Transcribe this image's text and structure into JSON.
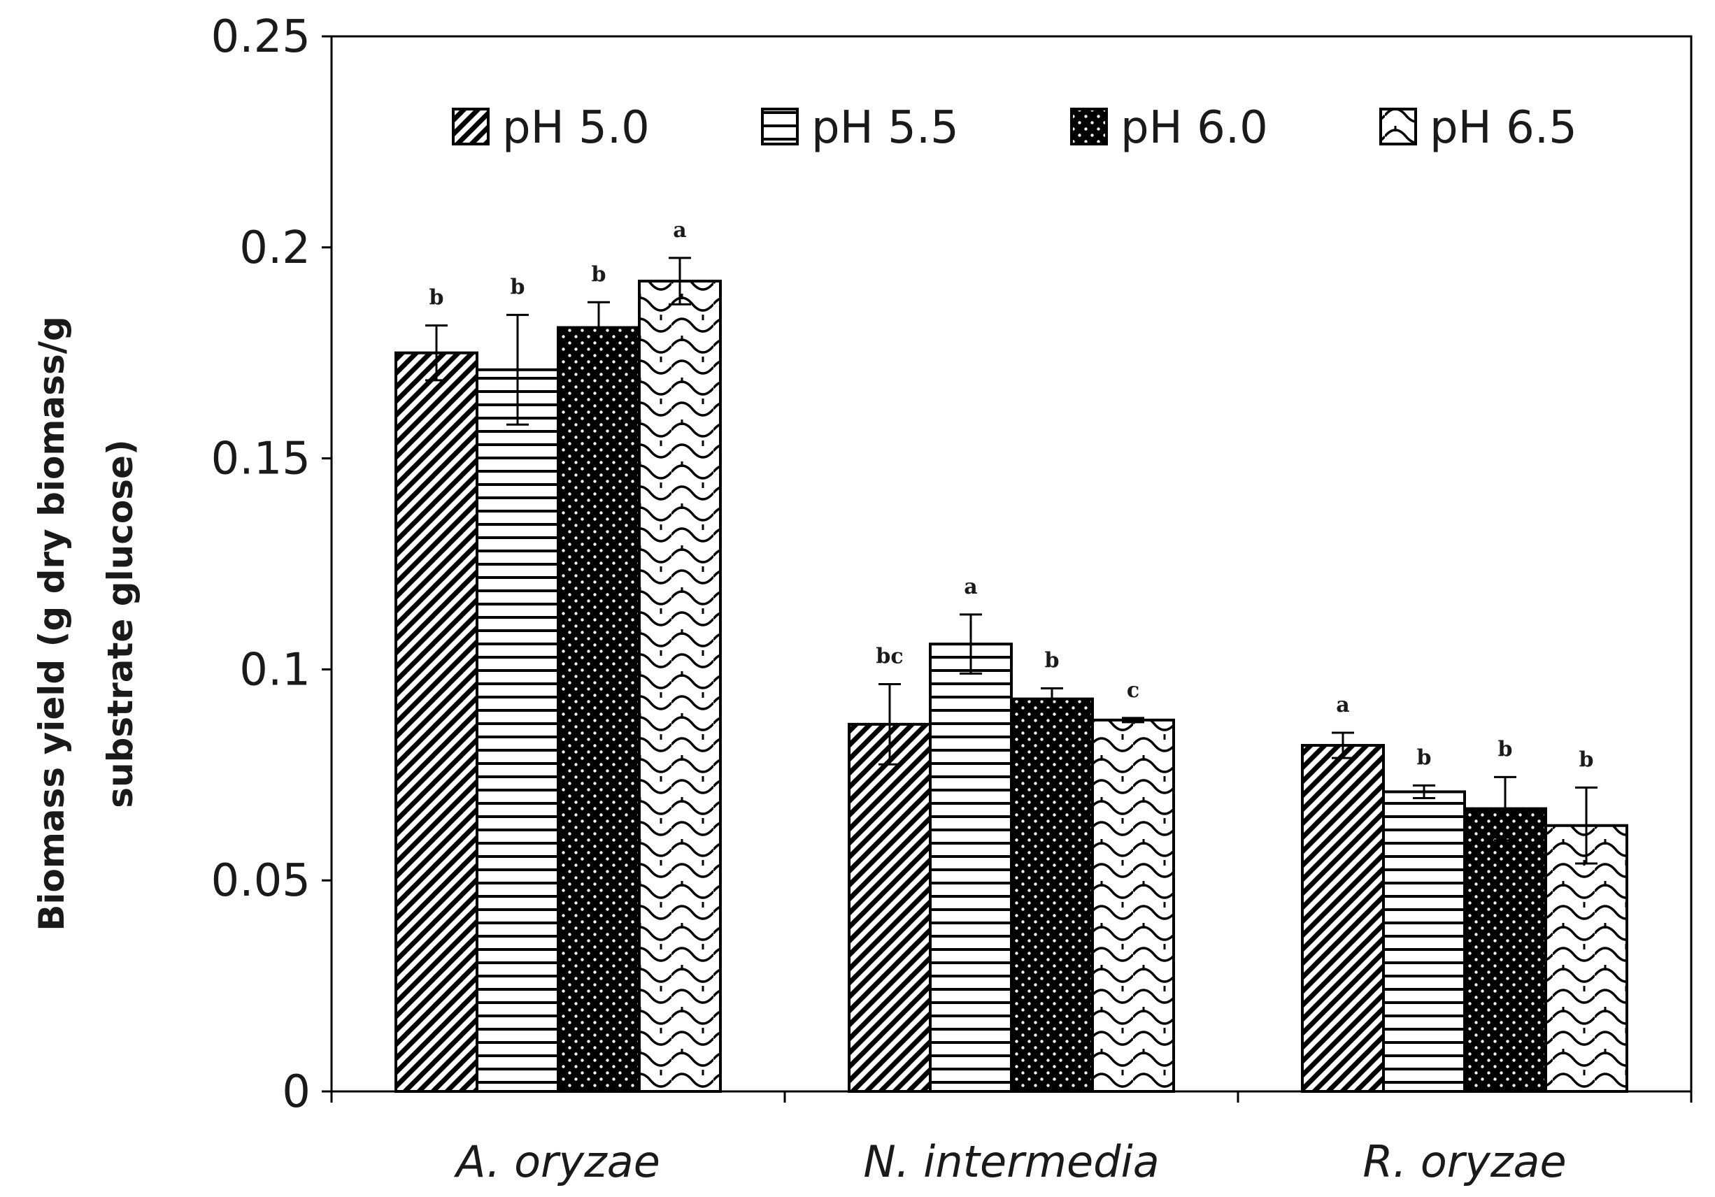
{
  "chart_data": {
    "type": "bar",
    "ylabel": "Biomass yield (g dry biomass/g substrate glucose)",
    "ylabel_lines": [
      "Biomass yield (g dry biomass/g",
      "substrate glucose)"
    ],
    "categories": [
      "A. oryzae",
      "N. intermedia",
      "R. oryzae"
    ],
    "ylim": [
      0,
      0.25
    ],
    "yticks": [
      0,
      0.05,
      0.1,
      0.15,
      0.2,
      0.25
    ],
    "ytick_labels": [
      "0",
      "0.05",
      "0.1",
      "0.15",
      "0.2",
      "0.25"
    ],
    "grid": false,
    "legend_position": "top",
    "series": [
      {
        "name": "pH 5.0",
        "pattern": "diagonal-stripes",
        "values": [
          0.175,
          0.087,
          0.082
        ],
        "errors": [
          0.0065,
          0.0095,
          0.003
        ],
        "labels": [
          "b",
          "bc",
          "a"
        ]
      },
      {
        "name": "pH 5.5",
        "pattern": "horizontal-stripes",
        "values": [
          0.171,
          0.106,
          0.071
        ],
        "errors": [
          0.013,
          0.007,
          0.0015
        ],
        "labels": [
          "b",
          "a",
          "b"
        ]
      },
      {
        "name": "pH 6.0",
        "pattern": "black-dots",
        "values": [
          0.181,
          0.093,
          0.067
        ],
        "errors": [
          0.006,
          0.0025,
          0.0075
        ],
        "labels": [
          "b",
          "b",
          "b"
        ]
      },
      {
        "name": "pH 6.5",
        "pattern": "scallop",
        "values": [
          0.192,
          0.088,
          0.063
        ],
        "errors": [
          0.0055,
          0.0005,
          0.009
        ],
        "labels": [
          "a",
          "c",
          "b"
        ]
      }
    ]
  }
}
